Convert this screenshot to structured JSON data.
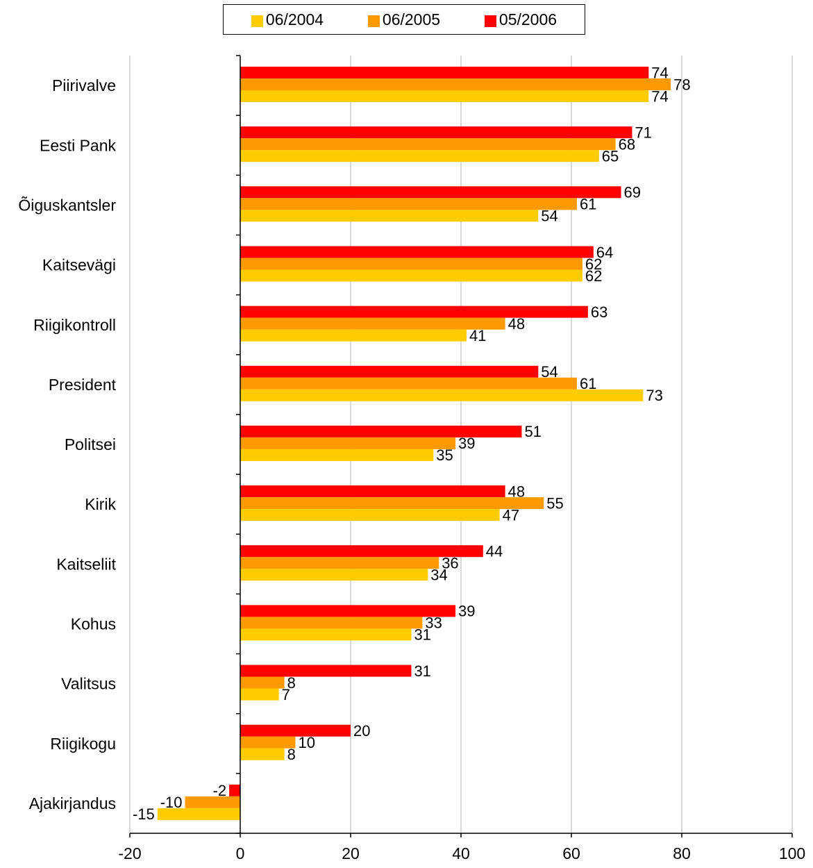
{
  "chart_data": {
    "type": "bar",
    "orientation": "horizontal",
    "title": "",
    "xlabel": "",
    "ylabel": "",
    "xlim": [
      -20,
      100
    ],
    "x_ticks": [
      -20,
      0,
      20,
      40,
      60,
      80,
      100
    ],
    "grid": "vertical",
    "legend_position": "top",
    "categories": [
      "Piirivalve",
      "Eesti Pank",
      "Õiguskantsler",
      "Kaitsevägi",
      "Riigikontroll",
      "President",
      "Politsei",
      "Kirik",
      "Kaitseliit",
      "Kohus",
      "Valitsus",
      "Riigikogu",
      "Ajakirjandus"
    ],
    "series": [
      {
        "name": "06/2004",
        "color": "#ffcc00",
        "values": [
          74,
          65,
          54,
          62,
          41,
          73,
          35,
          47,
          34,
          31,
          7,
          8,
          -15
        ]
      },
      {
        "name": "06/2005",
        "color": "#ff9900",
        "values": [
          78,
          68,
          61,
          62,
          48,
          61,
          39,
          55,
          36,
          33,
          8,
          10,
          -10
        ]
      },
      {
        "name": "05/2006",
        "color": "#ff0000",
        "values": [
          74,
          71,
          69,
          64,
          63,
          54,
          51,
          48,
          44,
          39,
          31,
          20,
          -2
        ]
      }
    ]
  }
}
